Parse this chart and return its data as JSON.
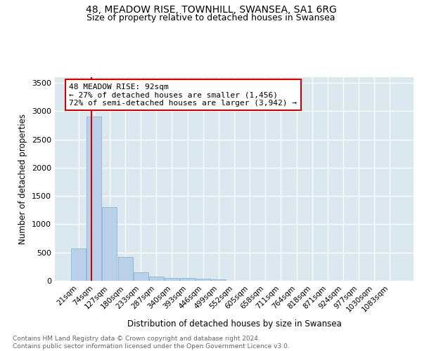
{
  "title": "48, MEADOW RISE, TOWNHILL, SWANSEA, SA1 6RG",
  "subtitle": "Size of property relative to detached houses in Swansea",
  "xlabel": "Distribution of detached houses by size in Swansea",
  "ylabel": "Number of detached properties",
  "bin_labels": [
    "21sqm",
    "74sqm",
    "127sqm",
    "180sqm",
    "233sqm",
    "287sqm",
    "340sqm",
    "393sqm",
    "446sqm",
    "499sqm",
    "552sqm",
    "605sqm",
    "658sqm",
    "711sqm",
    "764sqm",
    "818sqm",
    "871sqm",
    "924sqm",
    "977sqm",
    "1030sqm",
    "1083sqm"
  ],
  "bar_heights": [
    575,
    2900,
    1300,
    420,
    150,
    75,
    55,
    45,
    40,
    30,
    0,
    0,
    0,
    0,
    0,
    0,
    0,
    0,
    0,
    0,
    0
  ],
  "bar_color": "#b8d0e8",
  "bar_edge_color": "#7aafd4",
  "property_line_color": "#cc0000",
  "annotation_text": "48 MEADOW RISE: 92sqm\n← 27% of detached houses are smaller (1,456)\n72% of semi-detached houses are larger (3,942) →",
  "annotation_box_color": "#ffffff",
  "annotation_box_edge": "#cc0000",
  "ylim": [
    0,
    3600
  ],
  "yticks": [
    0,
    500,
    1000,
    1500,
    2000,
    2500,
    3000,
    3500
  ],
  "background_color": "#dce8f0",
  "footer_text": "Contains HM Land Registry data © Crown copyright and database right 2024.\nContains public sector information licensed under the Open Government Licence v3.0.",
  "title_fontsize": 10,
  "subtitle_fontsize": 9
}
